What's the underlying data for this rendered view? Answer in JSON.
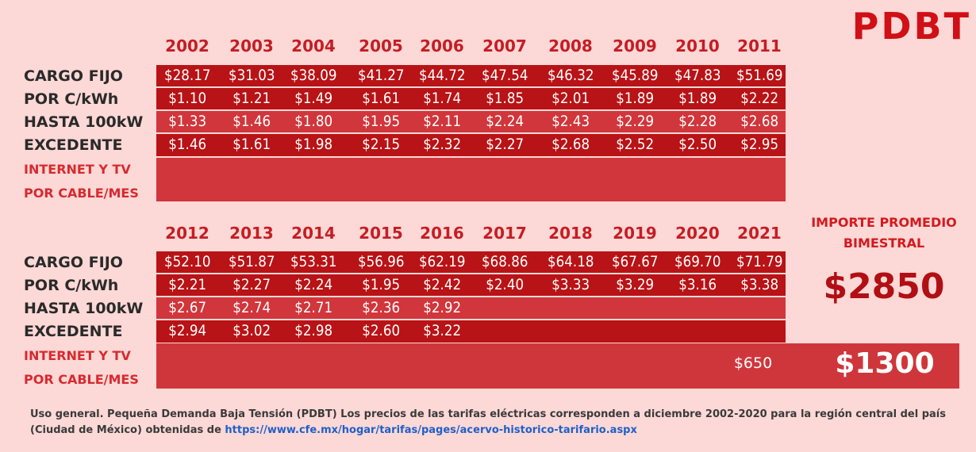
{
  "title": "PDBT",
  "chart_data": {
    "type": "table",
    "row_labels": [
      "CARGO FIJO",
      "POR C/kWh",
      "HASTA 100kW",
      "EXCEDENTE",
      "INTERNET Y TV",
      "POR CABLE/MES"
    ],
    "tables": [
      {
        "years": [
          "2002",
          "2003",
          "2004",
          "2005",
          "2006",
          "2007",
          "2008",
          "2009",
          "2010",
          "2011"
        ],
        "rows": [
          [
            "$28.17",
            "$31.03",
            "$38.09",
            "$41.27",
            "$44.72",
            "$47.54",
            "$46.32",
            "$45.89",
            "$47.83",
            "$51.69"
          ],
          [
            "$1.10",
            "$1.21",
            "$1.49",
            "$1.61",
            "$1.74",
            "$1.85",
            "$2.01",
            "$1.89",
            "$1.89",
            "$2.22"
          ],
          [
            "$1.33",
            "$1.46",
            "$1.80",
            "$1.95",
            "$2.11",
            "$2.24",
            "$2.43",
            "$2.29",
            "$2.28",
            "$2.68"
          ],
          [
            "$1.46",
            "$1.61",
            "$1.98",
            "$2.15",
            "$2.32",
            "$2.27",
            "$2.68",
            "$2.52",
            "$2.50",
            "$2.95"
          ]
        ]
      },
      {
        "years": [
          "2012",
          "2013",
          "2014",
          "2015",
          "2016",
          "2017",
          "2018",
          "2019",
          "2020",
          "2021"
        ],
        "rows": [
          [
            "$52.10",
            "$51.87",
            "$53.31",
            "$56.96",
            "$62.19",
            "$68.86",
            "$64.18",
            "$67.67",
            "$69.70",
            "$71.79"
          ],
          [
            "$2.21",
            "$2.27",
            "$2.24",
            "$1.95",
            "$2.42",
            "$2.40",
            "$3.33",
            "$3.29",
            "$3.16",
            "$3.38"
          ],
          [
            "$2.67",
            "$2.74",
            "$2.71",
            "$2.36",
            "$2.92",
            "",
            "",
            "",
            "",
            ""
          ],
          [
            "$2.94",
            "$3.02",
            "$2.98",
            "$2.60",
            "$3.22",
            "",
            "",
            "",
            "",
            ""
          ]
        ]
      }
    ]
  },
  "summary": {
    "heading_line1": "IMPORTE PROMEDIO",
    "heading_line2": "BIMESTRAL",
    "amount": "$2850"
  },
  "internet": {
    "small_amount": "$650",
    "big_amount": "$1300"
  },
  "footer": {
    "text": "Uso general. Pequeña Demanda Baja Tensión (PDBT) Los precios de las tarifas eléctricas corresponden a diciembre 2002-2020 para la región central del país (Ciudad de México) obtenidas de ",
    "link": "https://www.cfe.mx/hogar/tarifas/pages/acervo-historico-tarifario.aspx"
  },
  "colors": {
    "background": "#fcd8d6",
    "dark_band": "#b81316",
    "mid_band": "#d0363b",
    "accent": "#d01016"
  }
}
